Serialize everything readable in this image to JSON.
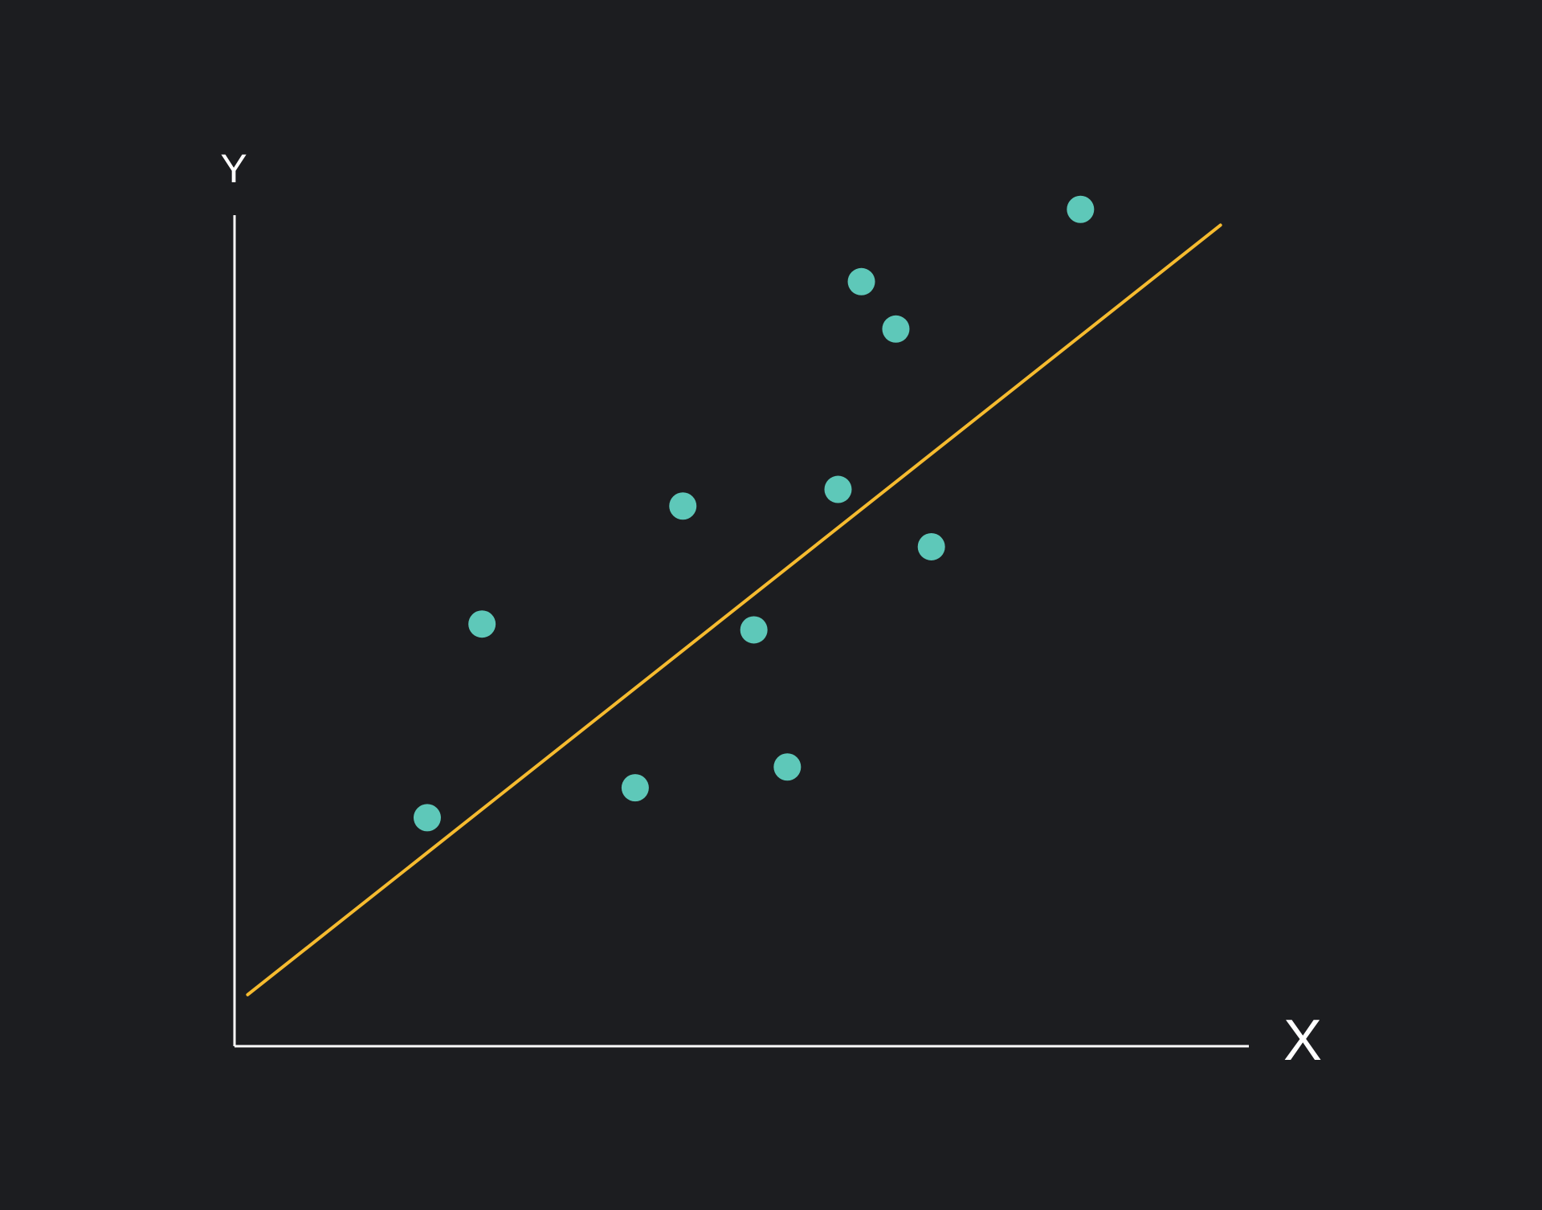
{
  "colors": {
    "background": "#1c1d20",
    "axis": "#ffffff",
    "points": "#5ec8b9",
    "trendline": "#f6bb2f"
  },
  "chart_data": {
    "type": "scatter",
    "title": "",
    "xlabel": "X",
    "ylabel": "Y",
    "xlim": [
      0,
      100
    ],
    "ylim": [
      0,
      100
    ],
    "grid": false,
    "ticks": false,
    "points": [
      {
        "x": 19.0,
        "y": 27.5
      },
      {
        "x": 24.4,
        "y": 50.8
      },
      {
        "x": 39.5,
        "y": 31.1
      },
      {
        "x": 44.2,
        "y": 65.0
      },
      {
        "x": 51.2,
        "y": 50.1
      },
      {
        "x": 54.5,
        "y": 33.6
      },
      {
        "x": 59.5,
        "y": 67.0
      },
      {
        "x": 61.8,
        "y": 92.0
      },
      {
        "x": 65.2,
        "y": 86.3
      },
      {
        "x": 68.7,
        "y": 60.1
      },
      {
        "x": 83.4,
        "y": 100.7
      }
    ],
    "trendline": {
      "x": [
        1.3,
        97.2
      ],
      "y": [
        6.2,
        98.8
      ]
    }
  }
}
